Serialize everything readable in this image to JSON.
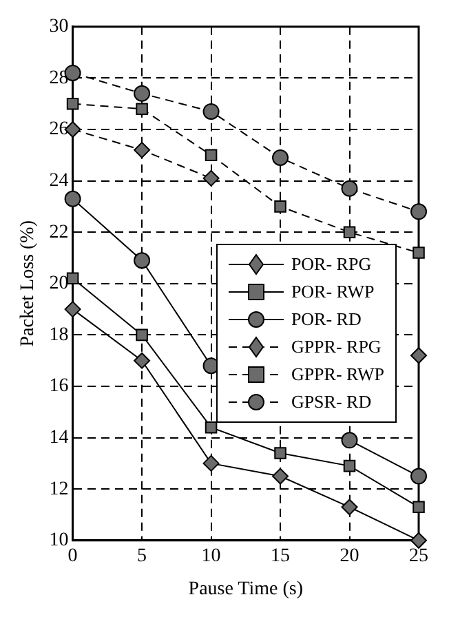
{
  "chart_data": {
    "type": "line",
    "xlabel": "Pause Time (s)",
    "ylabel": "Packet Loss (%)",
    "x": [
      0,
      5,
      10,
      15,
      20,
      25
    ],
    "xlim": [
      0,
      25
    ],
    "xticks": [
      0,
      5,
      10,
      15,
      20,
      25
    ],
    "ylim": [
      10,
      30
    ],
    "yticks": [
      10,
      12,
      14,
      16,
      18,
      20,
      22,
      24,
      26,
      28,
      30
    ],
    "grid": true,
    "legend": "bottom right",
    "series": [
      {
        "name": "POR- RPG",
        "color": "#6b6b6b",
        "marker": "diamond",
        "line_style": "solid",
        "values": [
          19,
          17,
          13,
          12.5,
          11.3,
          10
        ]
      },
      {
        "name": "POR- RWP",
        "color": "#6b6b6b",
        "marker": "square",
        "line_style": "solid",
        "values": [
          20.2,
          18,
          14.4,
          13.4,
          12.9,
          11.3
        ]
      },
      {
        "name": "POR- RD",
        "color": "#6b6b6b",
        "marker": "circle",
        "line_style": "solid",
        "values": [
          23.3,
          20.9,
          16.8,
          null,
          13.9,
          12.5
        ]
      },
      {
        "name": "GPPR- RPG",
        "color": "#6b6b6b",
        "marker": "diamond",
        "line_style": "dashed",
        "values": [
          26,
          25.2,
          24.1,
          null,
          null,
          17.2
        ]
      },
      {
        "name": "GPPR- RWP",
        "color": "#6b6b6b",
        "marker": "square",
        "line_style": "dashed",
        "values": [
          27,
          26.8,
          25,
          23,
          22,
          21.2
        ]
      },
      {
        "name": "GPSR- RD",
        "color": "#6b6b6b",
        "marker": "circle",
        "line_style": "dashed",
        "values": [
          28.2,
          27.4,
          26.7,
          24.9,
          23.7,
          22.8
        ]
      }
    ]
  }
}
